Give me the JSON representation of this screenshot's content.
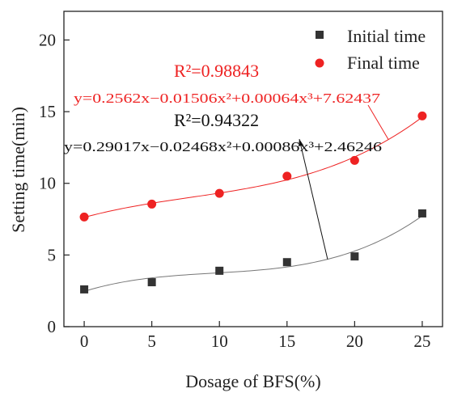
{
  "chart_data": {
    "type": "scatter",
    "xlabel": "Dosage of BFS(%)",
    "ylabel": "Setting time(min)",
    "xlim": [
      -1.5,
      26.5
    ],
    "ylim": [
      0,
      22
    ],
    "xticks": [
      "0",
      "5",
      "10",
      "15",
      "20",
      "25"
    ],
    "yticks": [
      "0",
      "5",
      "10",
      "15",
      "20"
    ],
    "grid": false,
    "legend_position": "top-right",
    "series": [
      {
        "name": "Initial time",
        "marker": "square",
        "color": "#333333",
        "x": [
          0,
          5,
          10,
          15,
          20,
          25
        ],
        "y": [
          2.6,
          3.1,
          3.9,
          4.5,
          4.9,
          7.9
        ],
        "fit": {
          "coefficients": {
            "a1": 0.29017,
            "a2": -0.02468,
            "a3": 0.00086,
            "c": 2.46246
          },
          "equation": "y=0.29017x−0.02468x²+0.00086x³+2.46246",
          "r2": "R²=0.94322",
          "line_color": "#777777"
        }
      },
      {
        "name": "Final time",
        "marker": "circle",
        "color": "#ee2222",
        "x": [
          0,
          5,
          10,
          15,
          20,
          25
        ],
        "y": [
          7.65,
          8.55,
          9.3,
          10.5,
          11.6,
          14.7
        ],
        "fit": {
          "coefficients": {
            "a1": 0.2562,
            "a2": -0.01506,
            "a3": 0.00064,
            "c": 7.62437
          },
          "equation": "y=0.2562x−0.01506x²+0.00064x³+7.62437",
          "r2": "R²=0.98843",
          "line_color": "#ee2222"
        }
      }
    ]
  }
}
